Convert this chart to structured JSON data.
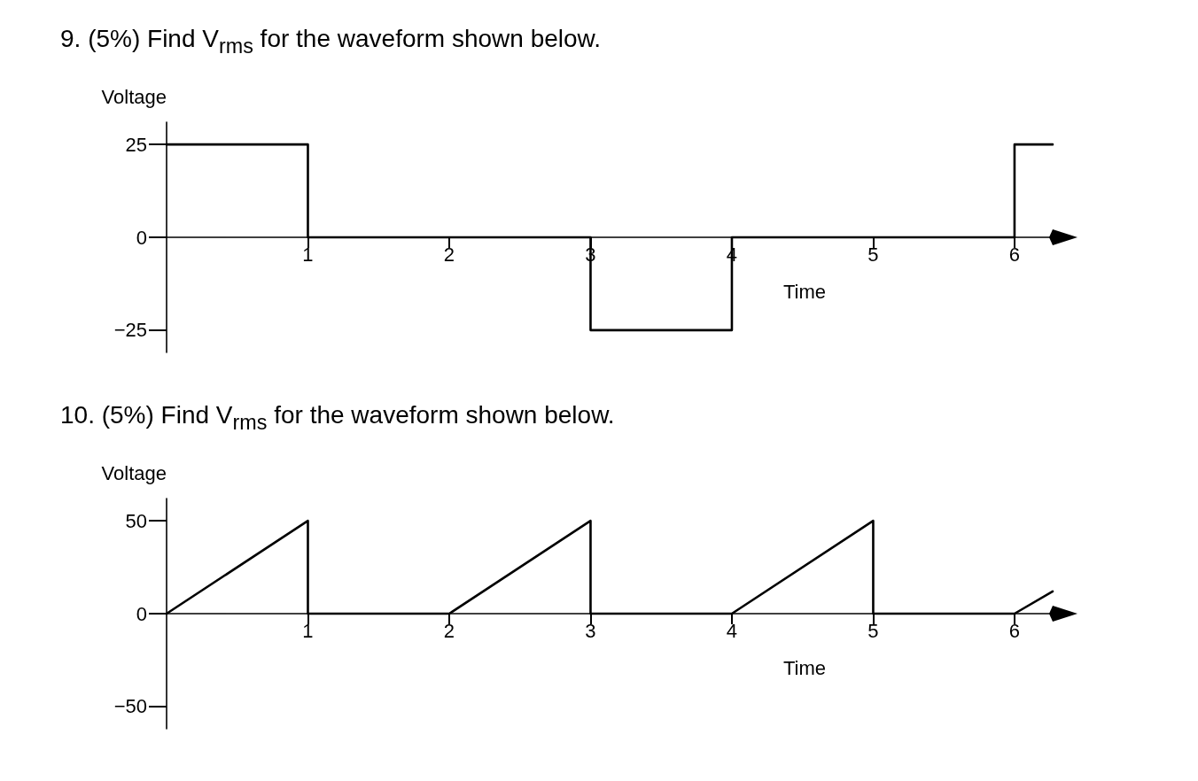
{
  "chart_data": [
    {
      "type": "line",
      "title": "9. (5%) Find V$_{rms}$ for the waveform shown below.",
      "xlabel": "Time",
      "ylabel": "Voltage",
      "series": [
        {
          "color": "#000000",
          "x": [
            0,
            1,
            1,
            3,
            3,
            4,
            4,
            6,
            6,
            6.27
          ],
          "values": [
            25,
            25,
            0,
            0,
            -25,
            -25,
            0,
            0,
            25,
            25
          ]
        }
      ],
      "xlim": [
        0,
        6.27
      ],
      "xticks": [
        1,
        2,
        3,
        4,
        5,
        6
      ],
      "ylim": [
        -31,
        31
      ],
      "yticks": [
        -25,
        0,
        25
      ],
      "marker": "none",
      "line_style": "solid"
    },
    {
      "type": "line",
      "title": "10. (5%) Find V$_{rms}$ for the waveform shown below.",
      "xlabel": "Time",
      "ylabel": "Voltage",
      "series": [
        {
          "color": "#000000",
          "x": [
            0,
            1,
            1,
            2,
            3,
            3,
            4,
            5,
            5,
            6,
            6.27
          ],
          "values": [
            0,
            50,
            0,
            0,
            50,
            0,
            0,
            50,
            0,
            0,
            12
          ]
        }
      ],
      "xlim": [
        0,
        6.27
      ],
      "xticks": [
        1,
        2,
        3,
        4,
        5,
        6
      ],
      "ylim": [
        -62,
        62
      ],
      "yticks": [
        -50,
        0,
        50
      ],
      "marker": "none",
      "line_style": "solid"
    }
  ]
}
